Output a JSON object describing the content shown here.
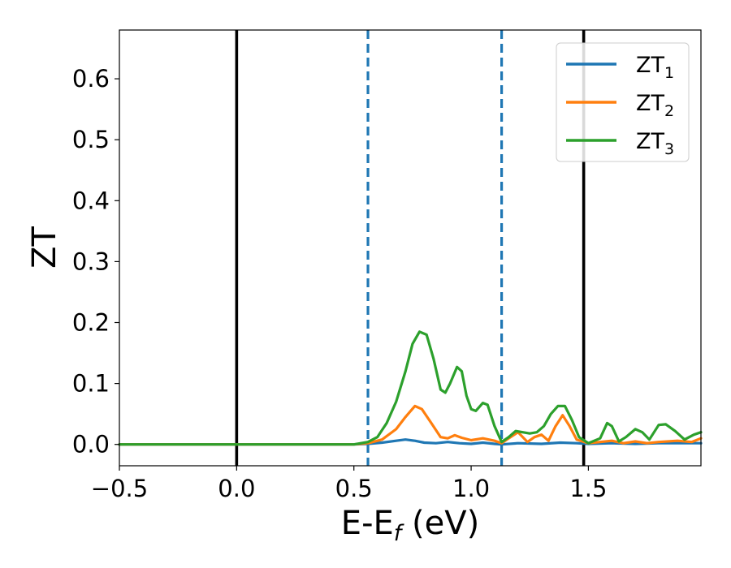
{
  "chart_data": {
    "type": "line",
    "xlabel": "E-E",
    "xlabel_sub": "f",
    "xlabel_unit": " (eV)",
    "ylabel": "ZT",
    "xlim": [
      -0.5,
      1.98
    ],
    "ylim": [
      -0.035,
      0.68
    ],
    "xticks": [
      -0.5,
      0.0,
      0.5,
      1.0,
      1.5
    ],
    "xtick_labels": [
      "−0.5",
      "0.0",
      "0.5",
      "1.0",
      "1.5"
    ],
    "yticks": [
      0.0,
      0.1,
      0.2,
      0.3,
      0.4,
      0.5,
      0.6
    ],
    "ytick_labels": [
      "0.0",
      "0.1",
      "0.2",
      "0.3",
      "0.4",
      "0.5",
      "0.6"
    ],
    "legend_position": "top-right",
    "reference_lines": [
      {
        "x": 0.0,
        "style": "solid",
        "color": "#000000"
      },
      {
        "x": 1.48,
        "style": "solid",
        "color": "#000000"
      },
      {
        "x": 0.56,
        "style": "dashed",
        "color": "#1f77b4"
      },
      {
        "x": 1.13,
        "style": "dashed",
        "color": "#1f77b4"
      }
    ],
    "series": [
      {
        "name": "ZT",
        "name_sub": "1",
        "color": "#1f77b4",
        "points": [
          [
            -0.5,
            0
          ],
          [
            0.5,
            0
          ],
          [
            0.56,
            0.001
          ],
          [
            0.62,
            0.003
          ],
          [
            0.68,
            0.006
          ],
          [
            0.72,
            0.008
          ],
          [
            0.76,
            0.006
          ],
          [
            0.8,
            0.003
          ],
          [
            0.85,
            0.002
          ],
          [
            0.9,
            0.004
          ],
          [
            0.95,
            0.002
          ],
          [
            1.0,
            0.001
          ],
          [
            1.05,
            0.003
          ],
          [
            1.1,
            0.001
          ],
          [
            1.13,
            0
          ],
          [
            1.2,
            0.002
          ],
          [
            1.3,
            0.001
          ],
          [
            1.38,
            0.003
          ],
          [
            1.45,
            0.002
          ],
          [
            1.5,
            0.001
          ],
          [
            1.6,
            0.002
          ],
          [
            1.7,
            0.001
          ],
          [
            1.8,
            0.002
          ],
          [
            1.9,
            0.002
          ],
          [
            1.98,
            0.002
          ]
        ]
      },
      {
        "name": "ZT",
        "name_sub": "2",
        "color": "#ff7f0e",
        "points": [
          [
            -0.5,
            0
          ],
          [
            0.5,
            0
          ],
          [
            0.56,
            0.002
          ],
          [
            0.62,
            0.008
          ],
          [
            0.68,
            0.025
          ],
          [
            0.72,
            0.045
          ],
          [
            0.76,
            0.063
          ],
          [
            0.79,
            0.058
          ],
          [
            0.83,
            0.035
          ],
          [
            0.87,
            0.012
          ],
          [
            0.9,
            0.01
          ],
          [
            0.93,
            0.015
          ],
          [
            0.96,
            0.011
          ],
          [
            1.0,
            0.007
          ],
          [
            1.05,
            0.01
          ],
          [
            1.1,
            0.006
          ],
          [
            1.13,
            0.002
          ],
          [
            1.16,
            0.01
          ],
          [
            1.2,
            0.02
          ],
          [
            1.24,
            0.004
          ],
          [
            1.27,
            0.012
          ],
          [
            1.3,
            0.016
          ],
          [
            1.33,
            0.006
          ],
          [
            1.36,
            0.03
          ],
          [
            1.39,
            0.048
          ],
          [
            1.42,
            0.03
          ],
          [
            1.45,
            0.008
          ],
          [
            1.5,
            0.002
          ],
          [
            1.6,
            0.006
          ],
          [
            1.65,
            0.002
          ],
          [
            1.7,
            0.005
          ],
          [
            1.75,
            0.002
          ],
          [
            1.8,
            0.004
          ],
          [
            1.88,
            0.006
          ],
          [
            1.94,
            0.004
          ],
          [
            1.98,
            0.01
          ]
        ]
      },
      {
        "name": "ZT",
        "name_sub": "3",
        "color": "#2ca02c",
        "points": [
          [
            -0.5,
            0
          ],
          [
            0.5,
            0
          ],
          [
            0.56,
            0.004
          ],
          [
            0.6,
            0.012
          ],
          [
            0.64,
            0.035
          ],
          [
            0.68,
            0.07
          ],
          [
            0.72,
            0.12
          ],
          [
            0.75,
            0.165
          ],
          [
            0.78,
            0.185
          ],
          [
            0.81,
            0.18
          ],
          [
            0.84,
            0.14
          ],
          [
            0.87,
            0.09
          ],
          [
            0.89,
            0.085
          ],
          [
            0.91,
            0.1
          ],
          [
            0.94,
            0.127
          ],
          [
            0.96,
            0.12
          ],
          [
            0.98,
            0.08
          ],
          [
            1.0,
            0.058
          ],
          [
            1.02,
            0.055
          ],
          [
            1.05,
            0.068
          ],
          [
            1.07,
            0.065
          ],
          [
            1.1,
            0.03
          ],
          [
            1.13,
            0.004
          ],
          [
            1.16,
            0.012
          ],
          [
            1.19,
            0.022
          ],
          [
            1.22,
            0.02
          ],
          [
            1.25,
            0.018
          ],
          [
            1.28,
            0.02
          ],
          [
            1.31,
            0.03
          ],
          [
            1.34,
            0.05
          ],
          [
            1.37,
            0.063
          ],
          [
            1.4,
            0.063
          ],
          [
            1.43,
            0.04
          ],
          [
            1.46,
            0.012
          ],
          [
            1.5,
            0.002
          ],
          [
            1.55,
            0.01
          ],
          [
            1.58,
            0.035
          ],
          [
            1.6,
            0.03
          ],
          [
            1.63,
            0.005
          ],
          [
            1.66,
            0.012
          ],
          [
            1.7,
            0.025
          ],
          [
            1.73,
            0.02
          ],
          [
            1.76,
            0.008
          ],
          [
            1.8,
            0.032
          ],
          [
            1.83,
            0.033
          ],
          [
            1.87,
            0.022
          ],
          [
            1.91,
            0.008
          ],
          [
            1.95,
            0.016
          ],
          [
            1.98,
            0.02
          ]
        ]
      }
    ]
  }
}
